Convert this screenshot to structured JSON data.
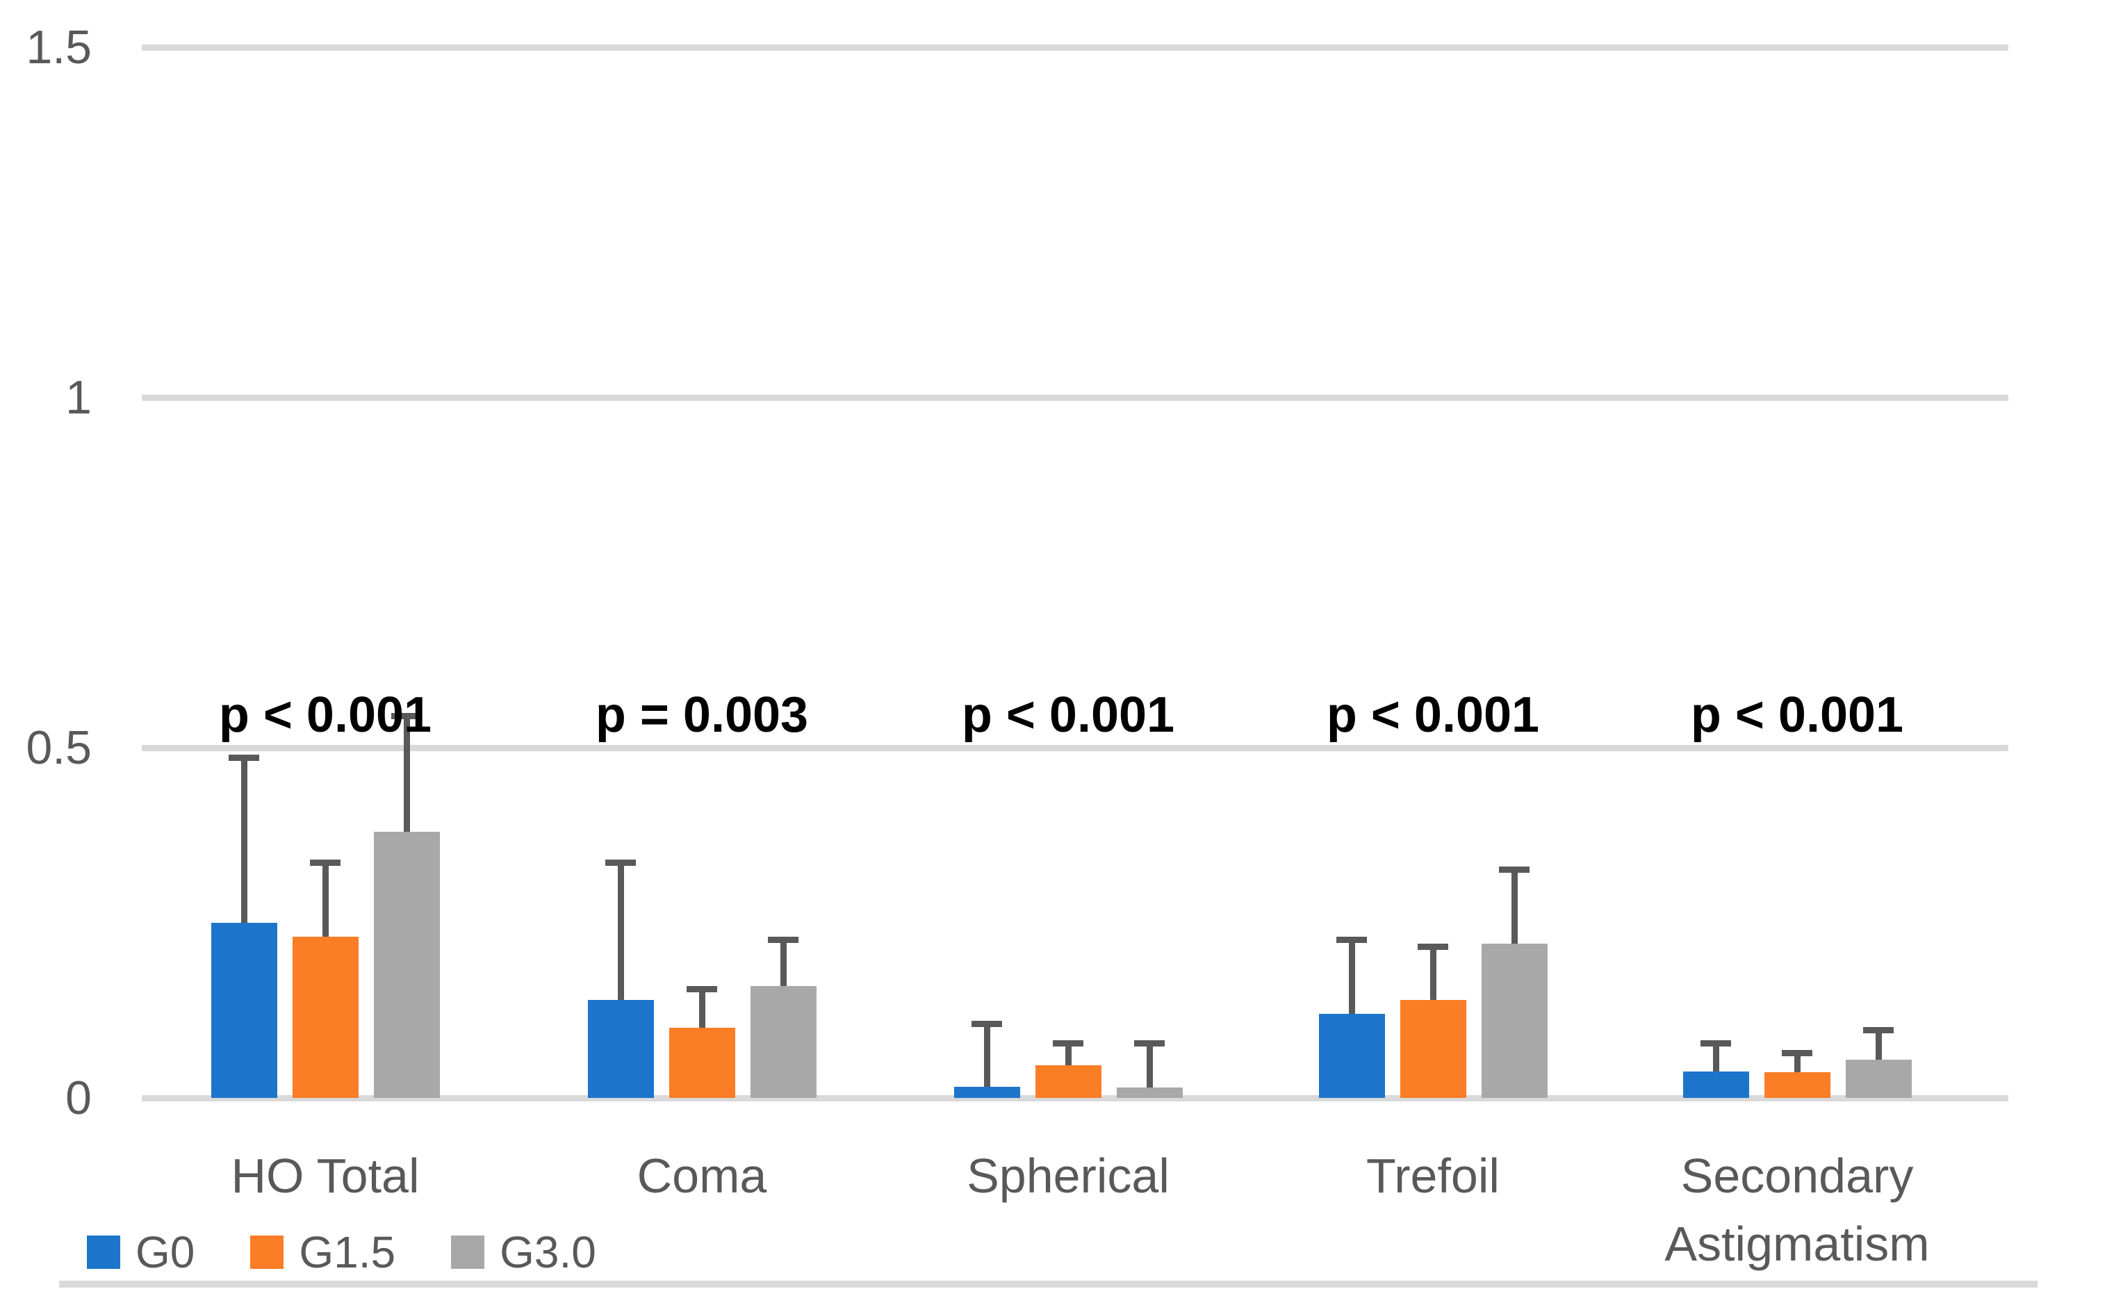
{
  "chart_data": {
    "type": "bar",
    "title": "",
    "categories": [
      "HO Total",
      "Coma",
      "Spherical",
      "Trefoil",
      "Secondary Astigmatism"
    ],
    "series": [
      {
        "name": "G0",
        "color": "#1C75CB",
        "values": [
          0.25,
          0.14,
          0.016,
          0.12,
          0.038
        ],
        "error_tops": [
          0.49,
          0.34,
          0.11,
          0.23,
          0.082
        ]
      },
      {
        "name": "G1.5",
        "color": "#FB7D25",
        "values": [
          0.23,
          0.1,
          0.047,
          0.14,
          0.037
        ],
        "error_tops": [
          0.34,
          0.16,
          0.082,
          0.22,
          0.068
        ]
      },
      {
        "name": "G3.0",
        "color": "#A8A8A8",
        "values": [
          0.38,
          0.16,
          0.015,
          0.22,
          0.055
        ],
        "error_tops": [
          0.55,
          0.23,
          0.082,
          0.33,
          0.101
        ]
      }
    ],
    "p_labels": [
      "p < 0.001",
      "p = 0.003",
      "p < 0.001",
      "p < 0.001",
      "p < 0.001"
    ],
    "y_ticks": [
      {
        "value": 0,
        "label": "0"
      },
      {
        "value": 0.5,
        "label": "0.5"
      },
      {
        "value": 1,
        "label": "1"
      },
      {
        "value": 1.5,
        "label": "1.5"
      }
    ],
    "ylim": [
      0,
      1.5
    ],
    "grid": true,
    "legend_position": "bottom-left",
    "error_bar_color": "#595959",
    "gridline_color": "#D9D9D9",
    "axis_text_color": "#595959",
    "p_label_color": "#000000",
    "background_color": "#FFFFFF"
  }
}
